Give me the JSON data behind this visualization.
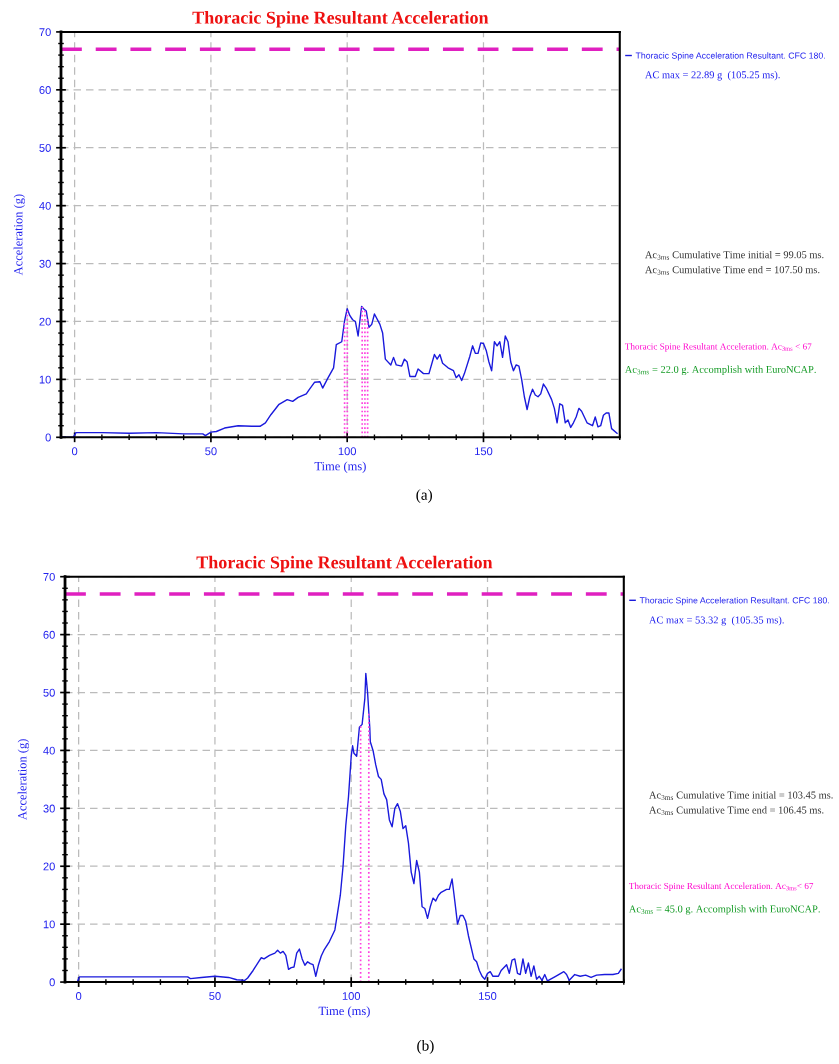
{
  "chart_data": [
    {
      "type": "line",
      "title": "Thoracic Spine Resultant Acceleration",
      "xlabel": "Time (ms)",
      "ylabel": "Acceleration (g)",
      "x": [
        -5,
        -0.5,
        0.5,
        10,
        20,
        30,
        40,
        47,
        48,
        50,
        52,
        55,
        60,
        65,
        68,
        70,
        72,
        75,
        78,
        80,
        82,
        85,
        86,
        88,
        90,
        91,
        93,
        95,
        96,
        98,
        99,
        100,
        101,
        102,
        103,
        104,
        105,
        105.3,
        106,
        107,
        108,
        109,
        110,
        112,
        113,
        114,
        116,
        117,
        118,
        120,
        121,
        122,
        123,
        125,
        126,
        128,
        130,
        132,
        133,
        134,
        135,
        137,
        139,
        140,
        141,
        142,
        143,
        145,
        146,
        147,
        148,
        149,
        150,
        151,
        152,
        153,
        154,
        155,
        156,
        157,
        158,
        159,
        160,
        161,
        162,
        163,
        164,
        165,
        166,
        167,
        168,
        169,
        170,
        171,
        172,
        173,
        175,
        176,
        177,
        178,
        179,
        180,
        181,
        182,
        183,
        184,
        185,
        186,
        188,
        190,
        191,
        192,
        193,
        194,
        195,
        196,
        197,
        199
      ],
      "series": [
        {
          "name": "Thoracic Spine Acceleration Resultant. CFC 180.",
          "color": "#1a1adc",
          "values": [
            0,
            0,
            0.8,
            0.8,
            0.7,
            0.8,
            0.6,
            0.6,
            0.3,
            0.9,
            1.0,
            1.6,
            2.0,
            1.9,
            1.9,
            2.5,
            3.9,
            5.7,
            6.5,
            6.2,
            6.9,
            7.5,
            8.2,
            9.5,
            9.6,
            8.5,
            10.3,
            12.0,
            16.0,
            16.5,
            20,
            22.2,
            21.0,
            20.3,
            20.0,
            17.5,
            21.5,
            22.6,
            22.2,
            21.8,
            19.0,
            19.5,
            21.3,
            19.5,
            18.0,
            13.5,
            12.5,
            13.8,
            12.5,
            12.3,
            13.5,
            13.0,
            10.5,
            10.5,
            11.8,
            11.0,
            11.0,
            14.3,
            13.5,
            14.3,
            12.8,
            12.0,
            11.5,
            10.3,
            10.8,
            9.8,
            11.0,
            14.0,
            15.8,
            14.5,
            14.5,
            16.3,
            16.2,
            15.0,
            13.0,
            11.5,
            16.5,
            15.8,
            16.5,
            13.8,
            17.5,
            16.5,
            13.0,
            11.5,
            12.5,
            12.3,
            10.0,
            7.0,
            4.8,
            7.0,
            8.3,
            7.3,
            7.0,
            7.5,
            9.2,
            8.5,
            6.5,
            5.0,
            2.5,
            5.8,
            5.5,
            2.5,
            3.0,
            1.7,
            2.5,
            3.5,
            5.0,
            4.5,
            2.5,
            2.0,
            3.5,
            1.8,
            2.0,
            3.8,
            4.2,
            4.2,
            1.5,
            0.7
          ]
        }
      ],
      "xlim": [
        -5,
        200
      ],
      "ylim": [
        0,
        70
      ],
      "xticks": [
        0,
        50,
        100,
        150
      ],
      "yticks": [
        0,
        10,
        20,
        30,
        40,
        50,
        60,
        70
      ],
      "grid": true,
      "legend": "right",
      "ref_lines": [
        {
          "axis": "y",
          "value": 67,
          "color": "#e020c0",
          "line_style": "dashed"
        },
        {
          "axis": "x",
          "value": 99.05,
          "color": "#ff40e0",
          "line_style": "dotted"
        },
        {
          "axis": "x",
          "value": 100.05,
          "color": "#ff40e0",
          "line_style": "dotted"
        },
        {
          "axis": "x",
          "value": 105.5,
          "color": "#ff40e0",
          "line_style": "dotted"
        },
        {
          "axis": "x",
          "value": 106.5,
          "color": "#ff40e0",
          "line_style": "dotted"
        },
        {
          "axis": "x",
          "value": 107.5,
          "color": "#ff40e0",
          "line_style": "dotted"
        }
      ],
      "annotations": [
        "AC max = 22.89 g  (105.25 ms).",
        "Ac$_{3ms}$ Cumulative Time initial = 99.05 ms.",
        "Ac$_{3ms}$ Cumulative Time end = 107.50 ms.",
        "Thoracic Spine Resultant Acceleration. Ac$_{3ms}$ < 67",
        "Ac$_{3ms}$ = 22.0 g. Accomplish with EuroNCAP.",
        "(a)"
      ]
    },
    {
      "type": "line",
      "title": "Thoracic Spine Resultant Acceleration",
      "xlabel": "Time (ms)",
      "ylabel": "Acceleration (g)",
      "x": [
        -5,
        -0.5,
        0.3,
        20,
        40,
        41,
        45,
        50,
        55,
        58,
        61,
        62,
        64,
        66,
        67,
        68,
        70,
        72,
        73,
        74,
        75,
        76,
        77,
        78,
        79,
        80,
        81,
        82,
        83,
        84,
        85,
        86,
        87,
        88,
        89,
        90,
        92,
        94,
        95,
        96,
        97,
        98,
        99,
        100,
        100.5,
        101,
        102,
        103,
        104,
        105,
        105.35,
        106,
        106.8,
        107,
        108,
        109,
        110,
        111,
        112,
        113,
        114,
        115,
        116,
        117,
        118,
        119,
        120,
        121,
        122,
        123,
        124,
        125,
        126,
        127,
        128,
        129,
        130,
        131,
        132,
        133,
        135,
        136,
        137,
        138,
        139,
        140,
        141,
        142,
        143,
        145,
        146,
        147,
        148,
        149,
        150,
        151,
        152,
        154,
        155,
        157,
        158,
        159,
        160,
        161,
        162,
        163,
        164,
        165,
        166,
        167,
        168,
        169,
        170,
        171,
        172,
        175,
        178,
        179,
        180,
        182,
        184,
        186,
        188,
        190,
        193,
        196,
        198,
        199
      ],
      "series": [
        {
          "name": "Thoracic Spine Acceleration Resultant. CFC 180.",
          "color": "#1a1adc",
          "values": [
            0,
            0,
            0.9,
            0.9,
            0.9,
            0.6,
            0.8,
            1.0,
            0.8,
            0.4,
            0.3,
            0.7,
            2.0,
            3.5,
            4.2,
            4.0,
            4.6,
            5.0,
            5.5,
            5.0,
            5.3,
            4.6,
            2.2,
            2.5,
            2.6,
            5.0,
            5.7,
            4.0,
            2.9,
            3.5,
            3.2,
            3.0,
            1.0,
            3.0,
            4.5,
            5.5,
            7.0,
            9.0,
            12.0,
            15.0,
            20.0,
            27.0,
            32.0,
            39.0,
            40.8,
            39.5,
            39.0,
            44.0,
            44.5,
            49.0,
            53.3,
            50.0,
            44.0,
            41.5,
            40.0,
            37.5,
            35.5,
            35.0,
            32.5,
            31.5,
            28.0,
            26.8,
            30.0,
            30.8,
            29.5,
            26.5,
            27.0,
            24.0,
            19.0,
            17.0,
            21.0,
            19.0,
            13.0,
            12.7,
            11.0,
            13.0,
            14.5,
            14.0,
            15.0,
            15.5,
            16.0,
            16.0,
            17.8,
            14.0,
            10.0,
            11.5,
            11.5,
            10.5,
            8.0,
            4.0,
            3.5,
            2.0,
            1.0,
            0.5,
            1.5,
            1.8,
            1.0,
            1.0,
            2.0,
            3.0,
            1.5,
            3.8,
            4.0,
            1.5,
            1.3,
            4.0,
            1.5,
            3.3,
            1.0,
            2.8,
            0.5,
            1.0,
            0.3,
            1.3,
            0.2,
            1.0,
            1.8,
            1.3,
            0.3,
            1.3,
            1.0,
            1.2,
            0.8,
            1.2,
            1.3,
            1.3,
            1.5,
            2.2
          ]
        }
      ],
      "xlim": [
        -5,
        200
      ],
      "ylim": [
        0,
        70
      ],
      "xticks": [
        0,
        50,
        100,
        150
      ],
      "yticks": [
        0,
        10,
        20,
        30,
        40,
        50,
        60,
        70
      ],
      "grid": true,
      "legend": "right",
      "ref_lines": [
        {
          "axis": "y",
          "value": 67,
          "color": "#e020c0",
          "line_style": "dashed"
        },
        {
          "axis": "x",
          "value": 103.45,
          "color": "#ff40e0",
          "line_style": "dotted"
        },
        {
          "axis": "x",
          "value": 106.45,
          "color": "#ff40e0",
          "line_style": "dotted"
        }
      ],
      "annotations": [
        "AC max = 53.32 g  (105.35 ms).",
        "Ac$_{3ms}$ Cumulative Time initial = 103.45 ms.",
        "Ac$_{3ms}$ Cumulative Time end = 106.45 ms.",
        "Thoracic Spine Resultant Acceleration. Ac$_{3ms}$< 67",
        "Ac$_{3ms}$ = 45.0 g. Accomplish with EuroNCAP.",
        "(b)"
      ]
    }
  ]
}
